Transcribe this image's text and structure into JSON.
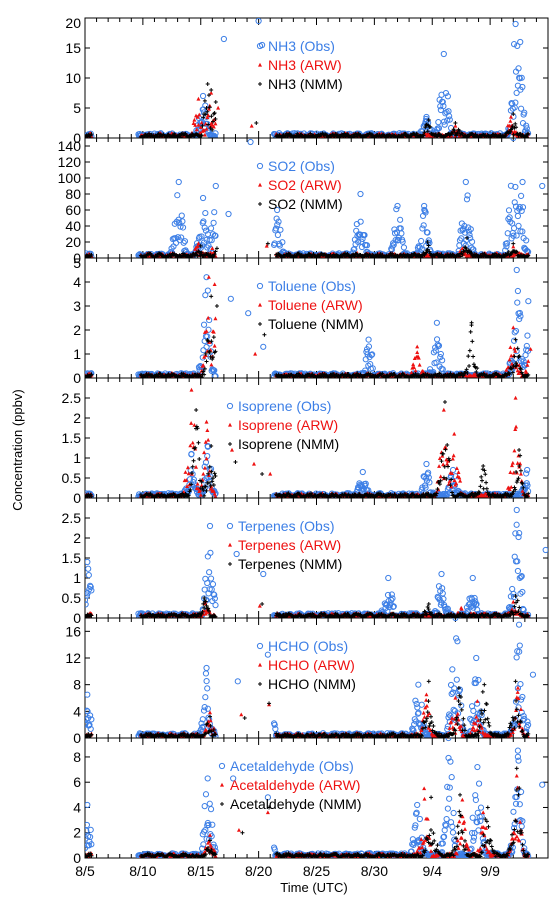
{
  "figure": {
    "ylabel": "Concentration (ppbv)",
    "xlabel": "Time (UTC)",
    "colors": {
      "obs": "#3d7fe6",
      "arw": "#ee1111",
      "nmm": "#000000"
    }
  },
  "chart_data": [
    {
      "type": "scatter",
      "ylim": [
        0,
        20
      ],
      "yticks": [
        "0",
        "5",
        "10",
        "15",
        "20"
      ],
      "legend": [
        "NH3 (Obs)",
        "NH3 (ARW)",
        "NH3 (NMM)"
      ],
      "legend_placement": "top-right",
      "peaks": {
        "obs": [
          [
            10.2,
            7
          ],
          [
            12.0,
            16.5
          ],
          [
            15.0,
            19.5
          ],
          [
            15.3,
            15.5
          ],
          [
            29.5,
            3.5
          ],
          [
            31.0,
            14
          ],
          [
            37.2,
            19
          ],
          [
            37.6,
            16
          ]
        ],
        "arw": [
          [
            9.8,
            6.5
          ],
          [
            10.9,
            7.5
          ],
          [
            11.5,
            5
          ],
          [
            14.4,
            2
          ],
          [
            32.0,
            2
          ],
          [
            36.8,
            3.5
          ]
        ],
        "nmm": [
          [
            10.6,
            9
          ],
          [
            10.9,
            8
          ],
          [
            11.3,
            6
          ],
          [
            14.8,
            2.5
          ],
          [
            29.7,
            3
          ],
          [
            32.0,
            2.5
          ],
          [
            37.0,
            4
          ]
        ]
      }
    },
    {
      "type": "scatter",
      "ylim": [
        0,
        150
      ],
      "yticks": [
        "0",
        "20",
        "40",
        "60",
        "80",
        "100",
        "120",
        "140"
      ],
      "legend": [
        "SO2 (Obs)",
        "SO2 (ARW)",
        "SO2 (NMM)"
      ],
      "legend_placement": "top-right",
      "peaks": {
        "obs": [
          [
            8.1,
            95
          ],
          [
            10.2,
            75
          ],
          [
            11.3,
            90
          ],
          [
            12.4,
            55
          ],
          [
            14.3,
            145
          ],
          [
            16.6,
            60
          ],
          [
            23.8,
            80
          ],
          [
            27.0,
            65
          ],
          [
            29.3,
            65
          ],
          [
            32.9,
            95
          ],
          [
            37.0,
            150
          ],
          [
            37.8,
            95
          ],
          [
            39.5,
            90
          ]
        ],
        "arw": [
          [
            9.8,
            18
          ],
          [
            11.0,
            12
          ],
          [
            15.7,
            15
          ],
          [
            32.6,
            12
          ],
          [
            37.0,
            14
          ]
        ],
        "nmm": [
          [
            10.0,
            15
          ],
          [
            11.4,
            12
          ],
          [
            15.8,
            18
          ],
          [
            29.6,
            20
          ],
          [
            33.0,
            25
          ],
          [
            37.0,
            18
          ]
        ]
      }
    },
    {
      "type": "scatter",
      "ylim": [
        0,
        5
      ],
      "yticks": [
        "0",
        "1",
        "2",
        "3",
        "4",
        "5"
      ],
      "legend": [
        "Toluene (Obs)",
        "Toluene (ARW)",
        "Toluene (NMM)"
      ],
      "legend_placement": "top-right",
      "peaks": {
        "obs": [
          [
            10.5,
            4.2
          ],
          [
            12.6,
            3.3
          ],
          [
            14.1,
            2.7
          ],
          [
            15.4,
            1.3
          ],
          [
            24.5,
            1.6
          ],
          [
            30.4,
            2.3
          ],
          [
            37.3,
            4.5
          ],
          [
            38.3,
            3.2
          ]
        ],
        "arw": [
          [
            10.7,
            4.2
          ],
          [
            11.2,
            3.9
          ],
          [
            14.7,
            1.0
          ],
          [
            28.7,
            1.3
          ],
          [
            37.0,
            2.1
          ],
          [
            38.5,
            1.2
          ]
        ],
        "nmm": [
          [
            10.9,
            3.4
          ],
          [
            11.4,
            3.0
          ],
          [
            15.5,
            1.8
          ],
          [
            33.4,
            2.3
          ],
          [
            37.2,
            1.6
          ]
        ]
      }
    },
    {
      "type": "scatter",
      "ylim": [
        0,
        3
      ],
      "yticks": [
        "0",
        "0.5",
        "1",
        "1.5",
        "2",
        "2.5"
      ],
      "legend": [
        "Isoprene (Obs)",
        "Isoprene (ARW)",
        "Isoprene (NMM)"
      ],
      "legend_placement": "top-right",
      "peaks": {
        "obs": [
          [
            9.2,
            1.1
          ],
          [
            10.6,
            1.3
          ],
          [
            24.0,
            0.65
          ],
          [
            29.5,
            0.85
          ],
          [
            31.8,
            0.7
          ],
          [
            38.2,
            0.7
          ]
        ],
        "arw": [
          [
            9.2,
            2.7
          ],
          [
            10.5,
            1.9
          ],
          [
            12.7,
            1.2
          ],
          [
            14.6,
            0.85
          ],
          [
            16.0,
            0.6
          ],
          [
            31.0,
            2.2
          ],
          [
            31.9,
            1.6
          ],
          [
            37.2,
            2.5
          ]
        ],
        "nmm": [
          [
            9.6,
            2.2
          ],
          [
            10.9,
            1.3
          ],
          [
            13.0,
            0.9
          ],
          [
            15.3,
            0.6
          ],
          [
            31.1,
            2.4
          ],
          [
            34.4,
            0.8
          ],
          [
            37.5,
            1.2
          ]
        ]
      }
    },
    {
      "type": "scatter",
      "ylim": [
        0,
        3
      ],
      "yticks": [
        "0",
        "0.5",
        "1",
        "1.5",
        "2",
        "2.5"
      ],
      "legend": [
        "Terpenes (Obs)",
        "Terpenes (ARW)",
        "Terpenes (NMM)"
      ],
      "legend_placement": "top-right",
      "peaks": {
        "obs": [
          [
            0.2,
            1.4
          ],
          [
            10.8,
            2.3
          ],
          [
            13.1,
            1.6
          ],
          [
            15.4,
            1.1
          ],
          [
            26.2,
            1.0
          ],
          [
            30.8,
            1.1
          ],
          [
            33.5,
            1.0
          ],
          [
            37.3,
            2.7
          ],
          [
            39.8,
            1.7
          ]
        ],
        "arw": [
          [
            10.4,
            0.4
          ],
          [
            15.1,
            0.3
          ],
          [
            32.5,
            0.25
          ],
          [
            37.0,
            0.4
          ]
        ],
        "nmm": [
          [
            10.3,
            0.5
          ],
          [
            15.3,
            0.35
          ],
          [
            29.7,
            0.35
          ],
          [
            37.2,
            0.55
          ]
        ]
      }
    },
    {
      "type": "scatter",
      "ylim": [
        0,
        18
      ],
      "yticks": [
        "0",
        "4",
        "8",
        "12",
        "16"
      ],
      "legend": [
        "HCHO (Obs)",
        "HCHO (ARW)",
        "HCHO (NMM)"
      ],
      "legend_placement": "top-right",
      "peaks": {
        "obs": [
          [
            0.2,
            6.5
          ],
          [
            10.5,
            10.5
          ],
          [
            13.2,
            8.5
          ],
          [
            15.8,
            12.5
          ],
          [
            28.8,
            8.0
          ],
          [
            32.0,
            18
          ],
          [
            33.8,
            12
          ],
          [
            37.5,
            17
          ],
          [
            38.7,
            9.5
          ]
        ],
        "arw": [
          [
            10.8,
            3.8
          ],
          [
            13.5,
            3.5
          ],
          [
            15.9,
            5.0
          ],
          [
            29.5,
            6.5
          ],
          [
            32.0,
            6.0
          ],
          [
            33.9,
            5.5
          ],
          [
            37.4,
            7.5
          ]
        ],
        "nmm": [
          [
            10.8,
            3.2
          ],
          [
            13.8,
            3.0
          ],
          [
            15.9,
            5.2
          ],
          [
            29.7,
            8.5
          ],
          [
            32.3,
            7.5
          ],
          [
            34.5,
            8.0
          ],
          [
            37.2,
            8.5
          ]
        ]
      }
    },
    {
      "type": "scatter",
      "ylim": [
        0,
        9.5
      ],
      "yticks": [
        "0",
        "2",
        "4",
        "6",
        "8"
      ],
      "legend": [
        "Acetaldehyde (Obs)",
        "Acetaldehyde (ARW)",
        "Acetaldehyde (NMM)"
      ],
      "legend_placement": "top-right",
      "peaks": {
        "obs": [
          [
            0.2,
            4.2
          ],
          [
            10.6,
            6.3
          ],
          [
            12.8,
            6.3
          ],
          [
            15.8,
            4.8
          ],
          [
            28.7,
            4.2
          ],
          [
            31.4,
            9.5
          ],
          [
            33.9,
            7.2
          ],
          [
            37.4,
            8.5
          ],
          [
            39.5,
            5.8
          ]
        ],
        "arw": [
          [
            10.8,
            1.8
          ],
          [
            13.3,
            2.2
          ],
          [
            15.8,
            3.6
          ],
          [
            29.3,
            5.5
          ],
          [
            32.6,
            4.6
          ],
          [
            34.4,
            3.6
          ],
          [
            37.3,
            6.5
          ]
        ],
        "nmm": [
          [
            10.8,
            1.4
          ],
          [
            13.6,
            2.0
          ],
          [
            15.9,
            4.0
          ],
          [
            29.9,
            4.8
          ],
          [
            32.4,
            5.0
          ],
          [
            34.8,
            4.0
          ],
          [
            37.3,
            7.1
          ]
        ]
      }
    }
  ],
  "x_axis": {
    "xlim": [
      0,
      40
    ],
    "ticks": [
      {
        "day": 0,
        "label": "8/5"
      },
      {
        "day": 5,
        "label": "8/10"
      },
      {
        "day": 10,
        "label": "8/15"
      },
      {
        "day": 15,
        "label": "8/20"
      },
      {
        "day": 20,
        "label": "8/25"
      },
      {
        "day": 25,
        "label": "8/30"
      },
      {
        "day": 30,
        "label": "9/4"
      },
      {
        "day": 35,
        "label": "9/9"
      }
    ]
  }
}
